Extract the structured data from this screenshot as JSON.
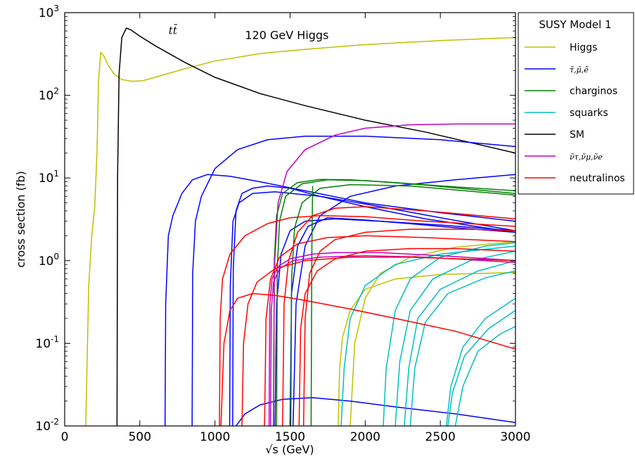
{
  "chart_data": {
    "type": "line",
    "title": "",
    "xlabel": "√s (GeV)",
    "ylabel": "cross section (fb)",
    "xlim": [
      0,
      3000
    ],
    "ylim": [
      0.01,
      1000
    ],
    "yscale": "log",
    "x_ticks": [
      "0",
      "500",
      "1000",
      "1500",
      "2000",
      "2500",
      "3000"
    ],
    "y_ticks": [
      {
        "base": "10",
        "exp": "-2"
      },
      {
        "base": "10",
        "exp": "-1"
      },
      {
        "base": "10",
        "exp": "0"
      },
      {
        "base": "10",
        "exp": "1"
      },
      {
        "base": "10",
        "exp": "2"
      },
      {
        "base": "10",
        "exp": "3"
      }
    ],
    "grid": false,
    "legend_position": "outside-right-top",
    "legend_title": "SUSY Model 1",
    "annotations": [
      {
        "text": "tt̄",
        "x": 720,
        "y": 550
      },
      {
        "text": "120 GeV Higgs",
        "x": 1200,
        "y": 480
      }
    ],
    "categories": [
      {
        "name": "Higgs",
        "label": "Higgs",
        "color": "#bfbf00"
      },
      {
        "name": "sleptons",
        "label": "τ̃,μ̃,ẽ",
        "color": "#0000ff"
      },
      {
        "name": "charginos",
        "label": "charginos",
        "color": "#008000"
      },
      {
        "name": "squarks",
        "label": "squarks",
        "color": "#00bfbf"
      },
      {
        "name": "SM",
        "label": "SM",
        "color": "#000000"
      },
      {
        "name": "sneutrinos",
        "label": "ν̃τ,ν̃μ,ν̃e",
        "color": "#bf00bf"
      },
      {
        "name": "neutralinos",
        "label": "neutralinos",
        "color": "#ff0000"
      }
    ],
    "series": [
      {
        "category": "Higgs",
        "x": [
          140,
          160,
          180,
          200,
          215,
          225,
          240,
          260,
          290,
          330,
          380,
          450,
          520,
          650,
          800,
          1000,
          1300,
          1600,
          2000,
          2500,
          3000
        ],
        "y": [
          0.01,
          0.5,
          2,
          4.5,
          20,
          150,
          330,
          300,
          230,
          180,
          155,
          148,
          150,
          175,
          210,
          260,
          320,
          360,
          410,
          460,
          500
        ]
      },
      {
        "category": "Higgs",
        "x": [
          1820,
          1830,
          1850,
          1900,
          2000,
          2200,
          2500,
          3000
        ],
        "y": [
          0.01,
          0.05,
          0.12,
          0.25,
          0.45,
          0.6,
          0.68,
          0.72
        ]
      },
      {
        "category": "Higgs",
        "x": [
          1900,
          1930,
          2000,
          2100,
          2300,
          2600,
          3000
        ],
        "y": [
          0.01,
          0.1,
          0.35,
          0.7,
          1.1,
          1.45,
          1.7
        ]
      },
      {
        "category": "SM",
        "x": [
          348,
          352,
          362,
          380,
          410,
          440,
          500,
          600,
          800,
          1000,
          1300,
          1600,
          2000,
          2400,
          3000
        ],
        "y": [
          0.01,
          10,
          180,
          500,
          650,
          620,
          520,
          400,
          250,
          165,
          105,
          75,
          50,
          36,
          20
        ]
      },
      {
        "category": "sleptons",
        "x": [
          668,
          672,
          690,
          720,
          780,
          850,
          950,
          1100,
          1300,
          1600,
          2000,
          2500,
          3000
        ],
        "y": [
          0.01,
          0.3,
          2,
          3.5,
          6.5,
          9.5,
          11,
          10.5,
          9,
          7,
          5,
          3.8,
          3
        ]
      },
      {
        "category": "sleptons",
        "x": [
          848,
          852,
          870,
          910,
          1000,
          1150,
          1350,
          1600,
          2000,
          2500,
          3000
        ],
        "y": [
          0.01,
          0.7,
          3,
          6,
          13,
          22,
          29,
          32,
          32,
          29,
          24
        ]
      },
      {
        "category": "sleptons",
        "x": [
          1098,
          1102,
          1120,
          1160,
          1250,
          1400,
          1700,
          2100,
          2500,
          3000
        ],
        "y": [
          0.01,
          0.5,
          3,
          5,
          6.5,
          6.8,
          6,
          4.5,
          3.3,
          2.3
        ]
      },
      {
        "category": "sleptons",
        "x": [
          1118,
          1122,
          1140,
          1180,
          1250,
          1350,
          1500,
          1700,
          2000,
          2400,
          3000
        ],
        "y": [
          0.01,
          0.8,
          4,
          6.5,
          7.5,
          8,
          7.5,
          6,
          4.5,
          3.2,
          2.2
        ]
      },
      {
        "category": "sleptons",
        "x": [
          1400,
          1410,
          1440,
          1500,
          1600,
          1800,
          2100,
          2500,
          3000
        ],
        "y": [
          0.01,
          0.3,
          1.2,
          2.3,
          3,
          3.2,
          3,
          2.7,
          2.3
        ]
      },
      {
        "category": "sleptons",
        "x": [
          1500,
          1510,
          1550,
          1620,
          1750,
          2000,
          2300,
          2600,
          3000
        ],
        "y": [
          0.01,
          0.4,
          1.5,
          2.6,
          3.3,
          3.1,
          2.8,
          2.5,
          2.2
        ]
      },
      {
        "category": "sleptons",
        "x": [
          1520,
          1540,
          1600,
          1700,
          1900,
          2200,
          2600,
          3000
        ],
        "y": [
          0.01,
          0.3,
          1.5,
          3.5,
          6,
          8,
          9.5,
          11
        ]
      },
      {
        "category": "sleptons",
        "x": [
          1140,
          1200,
          1300,
          1450,
          1650,
          1900,
          2200,
          2600,
          3000
        ],
        "y": [
          0.01,
          0.014,
          0.018,
          0.021,
          0.022,
          0.02,
          0.017,
          0.014,
          0.011
        ]
      },
      {
        "category": "charginos",
        "x": [
          1390,
          1395,
          1410,
          1450,
          1550,
          1700,
          1900,
          2200,
          2600,
          3000
        ],
        "y": [
          0.01,
          1,
          3.5,
          6.5,
          8.8,
          9.6,
          9.5,
          8.8,
          7.8,
          7
        ]
      },
      {
        "category": "charginos",
        "x": [
          1410,
          1415,
          1430,
          1470,
          1580,
          1750,
          2000,
          2400,
          3000
        ],
        "y": [
          0.01,
          0.8,
          3,
          6,
          8.5,
          9.5,
          9.3,
          8.2,
          6.5
        ]
      },
      {
        "category": "charginos",
        "x": [
          1505,
          1510,
          1530,
          1580,
          1700,
          1900,
          2300,
          3000
        ],
        "y": [
          0.01,
          0.6,
          2.5,
          5,
          7.5,
          8.3,
          8,
          6.2
        ]
      },
      {
        "category": "charginos",
        "x": [
          1640,
          1645,
          1650
        ],
        "y": [
          0.01,
          1.5,
          8
        ]
      },
      {
        "category": "squarks",
        "x": [
          1840,
          1860,
          1900,
          2000,
          2200,
          2500,
          3000
        ],
        "y": [
          0.01,
          0.05,
          0.2,
          0.5,
          0.9,
          1.2,
          1.5
        ]
      },
      {
        "category": "squarks",
        "x": [
          2120,
          2140,
          2200,
          2300,
          2500,
          2800,
          3000
        ],
        "y": [
          0.01,
          0.05,
          0.25,
          0.6,
          1.1,
          1.5,
          1.65
        ]
      },
      {
        "category": "squarks",
        "x": [
          2200,
          2230,
          2300,
          2450,
          2700,
          3000
        ],
        "y": [
          0.01,
          0.06,
          0.25,
          0.6,
          1.0,
          1.3
        ]
      },
      {
        "category": "squarks",
        "x": [
          2260,
          2290,
          2350,
          2500,
          2750,
          3000
        ],
        "y": [
          0.01,
          0.05,
          0.2,
          0.45,
          0.75,
          1.0
        ]
      },
      {
        "category": "squarks",
        "x": [
          2300,
          2330,
          2400,
          2550,
          2800,
          3000
        ],
        "y": [
          0.01,
          0.05,
          0.18,
          0.4,
          0.62,
          0.75
        ]
      },
      {
        "category": "squarks",
        "x": [
          2540,
          2570,
          2650,
          2800,
          3000
        ],
        "y": [
          0.01,
          0.03,
          0.09,
          0.2,
          0.35
        ]
      },
      {
        "category": "squarks",
        "x": [
          2550,
          2580,
          2660,
          2820,
          3000
        ],
        "y": [
          0.01,
          0.025,
          0.07,
          0.15,
          0.25
        ]
      },
      {
        "category": "squarks",
        "x": [
          2600,
          2650,
          2750,
          2900,
          3000
        ],
        "y": [
          0.01,
          0.03,
          0.08,
          0.13,
          0.16
        ]
      },
      {
        "category": "sneutrinos",
        "x": [
          1390,
          1395,
          1420,
          1480,
          1600,
          1800,
          2000,
          2300,
          2600,
          3000
        ],
        "y": [
          0.01,
          0.8,
          5,
          12,
          22,
          33,
          40,
          44,
          45,
          45
        ]
      },
      {
        "category": "sneutrinos",
        "x": [
          1360,
          1365,
          1380,
          1420,
          1500,
          1650,
          1800,
          2100,
          2500,
          3000
        ],
        "y": [
          0.01,
          0.3,
          0.6,
          0.85,
          1.05,
          1.2,
          1.25,
          1.25,
          1.15,
          1.0
        ]
      },
      {
        "category": "sneutrinos",
        "x": [
          1370,
          1375,
          1390,
          1430,
          1520,
          1700,
          2000,
          2400,
          3000
        ],
        "y": [
          0.01,
          0.25,
          0.55,
          0.8,
          1.0,
          1.1,
          1.15,
          1.1,
          0.95
        ]
      },
      {
        "category": "neutralinos",
        "x": [
          1030,
          1035,
          1050,
          1100,
          1200,
          1350,
          1500,
          1700,
          2000,
          2400,
          3000
        ],
        "y": [
          0.01,
          0.2,
          0.6,
          1.2,
          2,
          2.8,
          3.3,
          3.5,
          3.4,
          3.0,
          2.6
        ]
      },
      {
        "category": "neutralinos",
        "x": [
          1040,
          1060,
          1100,
          1150,
          1250,
          1400,
          1600,
          1900,
          2200,
          2600,
          3000
        ],
        "y": [
          0.01,
          0.1,
          0.25,
          0.35,
          0.4,
          0.38,
          0.33,
          0.26,
          0.2,
          0.14,
          0.085
        ]
      },
      {
        "category": "neutralinos",
        "x": [
          1180,
          1190,
          1220,
          1280,
          1400,
          1600,
          1900,
          2300,
          3000
        ],
        "y": [
          0.01,
          0.1,
          0.3,
          0.55,
          0.8,
          1.0,
          1.1,
          1.1,
          1.0
        ]
      },
      {
        "category": "neutralinos",
        "x": [
          1330,
          1340,
          1370,
          1430,
          1550,
          1750,
          2000,
          2400,
          3000
        ],
        "y": [
          0.01,
          0.2,
          0.6,
          1.1,
          1.6,
          1.9,
          2.0,
          1.9,
          1.7
        ]
      },
      {
        "category": "neutralinos",
        "x": [
          1450,
          1460,
          1490,
          1550,
          1650,
          1800,
          2000,
          2400,
          3000
        ],
        "y": [
          0.01,
          0.3,
          1.0,
          2.2,
          3.5,
          4.3,
          4.5,
          4.0,
          3.2
        ]
      },
      {
        "category": "neutralinos",
        "x": [
          1560,
          1570,
          1600,
          1680,
          1800,
          2000,
          2300,
          2600,
          3000
        ],
        "y": [
          0.01,
          0.15,
          0.4,
          0.75,
          1.05,
          1.3,
          1.4,
          1.4,
          1.3
        ]
      },
      {
        "category": "neutralinos",
        "x": [
          1590,
          1600,
          1630,
          1700,
          1800,
          2000,
          2300,
          2700,
          3000
        ],
        "y": [
          0.01,
          0.2,
          0.7,
          1.3,
          1.8,
          2.2,
          2.4,
          2.4,
          2.3
        ]
      }
    ]
  }
}
